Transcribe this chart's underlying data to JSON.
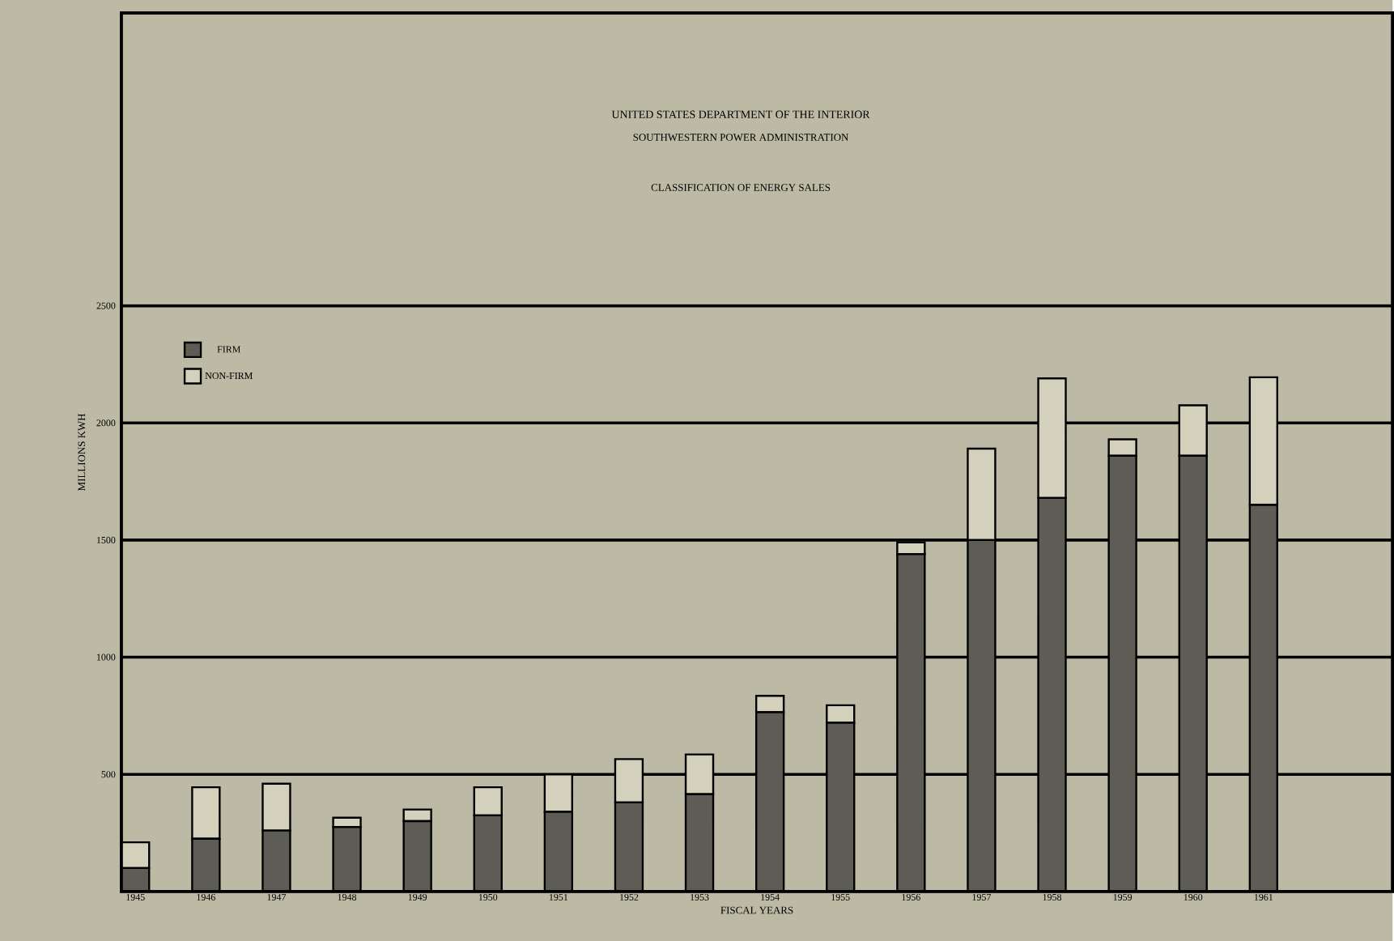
{
  "chart_data": {
    "type": "bar",
    "stacked": true,
    "title": "CLASSIFICATION OF ENERGY SALES",
    "subtitle": "SOUTHWESTERN POWER ADMINISTRATION",
    "annotations": [
      "UNITED STATES DEPARTMENT OF THE INTERIOR"
    ],
    "xlabel": "FISCAL YEARS",
    "ylabel": "MILLIONS  KWH",
    "categories": [
      "1945",
      "1946",
      "1947",
      "1948",
      "1949",
      "1950",
      "1951",
      "1952",
      "1953",
      "1954",
      "1955",
      "1956",
      "1957",
      "1958",
      "1959",
      "1960",
      "1961"
    ],
    "series": [
      {
        "name": "FIRM",
        "color": "#5e5d55",
        "values": [
          100,
          225,
          260,
          275,
          300,
          325,
          340,
          380,
          415,
          765,
          720,
          1440,
          1500,
          1680,
          1860,
          1860,
          1650
        ]
      },
      {
        "name": "NON-FIRM",
        "color": "#d3d0bc",
        "values": [
          110,
          220,
          200,
          40,
          50,
          120,
          160,
          185,
          170,
          70,
          75,
          50,
          390,
          510,
          70,
          215,
          545
        ]
      }
    ],
    "ylim": [
      0,
      3750
    ],
    "yticks": [
      500,
      1000,
      1500,
      2000,
      2500
    ],
    "grid": "y",
    "legend": "top left"
  }
}
